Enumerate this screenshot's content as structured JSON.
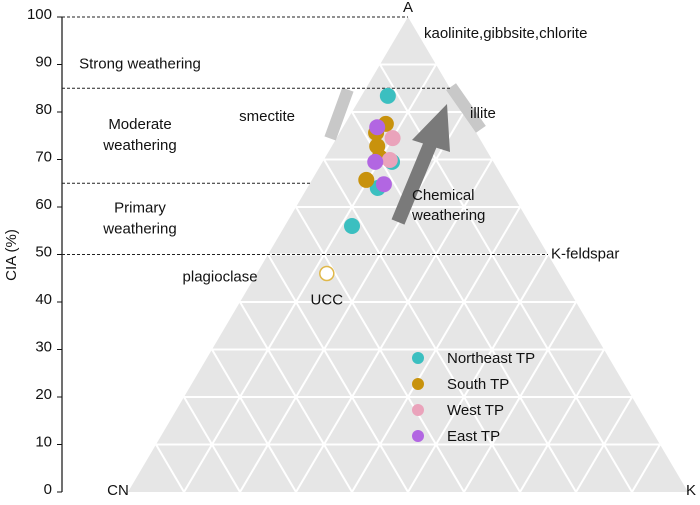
{
  "chart_data": {
    "type": "ternary",
    "y_label": "CIA (%)",
    "ylim": [
      0,
      100
    ],
    "yticks": [
      0,
      10,
      20,
      30,
      40,
      50,
      60,
      70,
      80,
      90,
      100
    ],
    "corners": {
      "top": "A",
      "left": "CN",
      "right": "K"
    },
    "annotations": [
      {
        "text": "kaolinite,gibbsite,chlorite",
        "value": 97
      },
      {
        "text": "illite",
        "value": 81
      },
      {
        "text": "smectite",
        "value": 80
      },
      {
        "text": "K-feldspar",
        "value": 50
      },
      {
        "text": "plagioclase",
        "value": 47
      }
    ],
    "arrow_label": [
      "Chemical",
      "weathering"
    ],
    "hlines": [
      {
        "value": 100,
        "to": "right"
      },
      {
        "value": 85,
        "to": "right"
      },
      {
        "value": 65,
        "to": "left"
      },
      {
        "value": 50,
        "to": "right"
      }
    ],
    "zones": [
      {
        "label": [
          "Strong  weathering"
        ],
        "value": 90
      },
      {
        "label": [
          "Moderate",
          "weathering"
        ],
        "value": 75
      },
      {
        "label": [
          "Primary",
          "weathering"
        ],
        "value": 57.5
      }
    ],
    "reference_point": {
      "label": "UCC",
      "value": 46,
      "k": 12.5,
      "color": "#e0b84a"
    },
    "series": [
      {
        "name": "Northeast TP",
        "color": "#3bbfc0",
        "values": [
          83.4,
          69.5,
          64,
          56
        ],
        "k": [
          4.7,
          12.4,
          12.6,
          12
        ]
      },
      {
        "name": "South TP",
        "color": "#c8920c",
        "values": [
          77.5,
          75.6,
          72.8,
          70.5,
          65.7
        ],
        "k": [
          7.3,
          6.5,
          8.1,
          9.7,
          9.7
        ]
      },
      {
        "name": "West TP",
        "color": "#eaa3bb",
        "values": [
          74.5,
          69.9
        ],
        "k": [
          10,
          11.8
        ]
      },
      {
        "name": "East TP",
        "color": "#b266e2",
        "values": [
          76.8,
          69.5,
          64.8
        ],
        "k": [
          6.1,
          9.4,
          13.3
        ]
      }
    ]
  }
}
